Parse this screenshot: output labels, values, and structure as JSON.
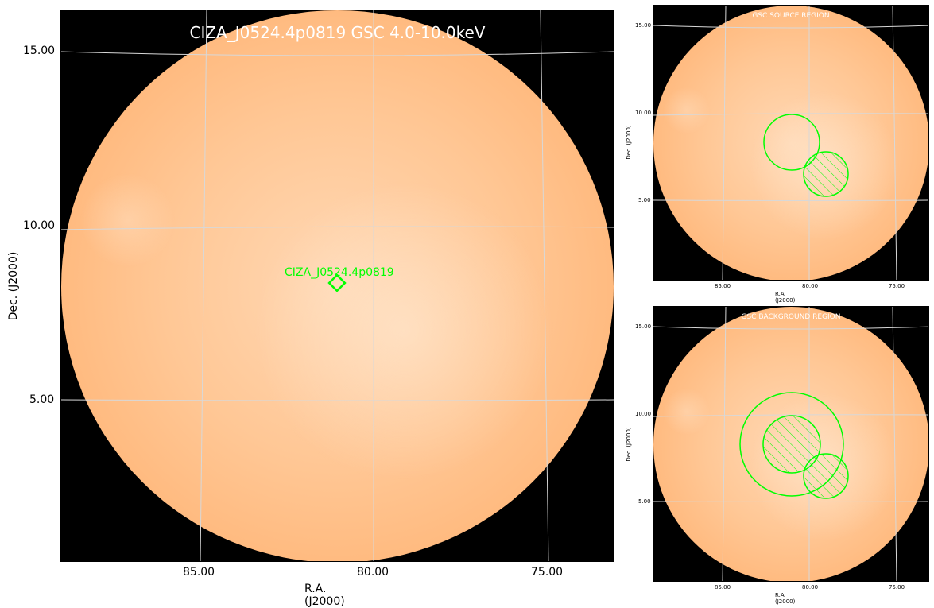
{
  "main": {
    "title": "CIZA_J0524.4p0819 GSC 4.0-10.0keV",
    "xlabel": "R.A. (J2000)",
    "ylabel": "Dec. (J2000)",
    "xticks": [
      "85.00",
      "80.00",
      "75.00"
    ],
    "yticks": [
      "15.00",
      "10.00",
      "5.00"
    ],
    "source_label": "CIZA_J0524.4p0819"
  },
  "source_panel": {
    "title": "GSC SOURCE REGION",
    "xlabel": "R.A. (J2000)",
    "ylabel": "Dec. (J2000)",
    "xticks": [
      "85.00",
      "80.00",
      "75.00"
    ],
    "yticks": [
      "15.00",
      "10.00",
      "5.00"
    ]
  },
  "background_panel": {
    "title": "GSC BACKGROUND REGION",
    "xlabel": "R.A. (J2000)",
    "ylabel": "Dec. (J2000)",
    "xticks": [
      "85.00",
      "80.00",
      "75.00"
    ],
    "yticks": [
      "15.00",
      "10.00",
      "5.00"
    ]
  },
  "colors": {
    "region": "#00ff00",
    "grid": "#d8d8d8",
    "background": "#000000"
  }
}
